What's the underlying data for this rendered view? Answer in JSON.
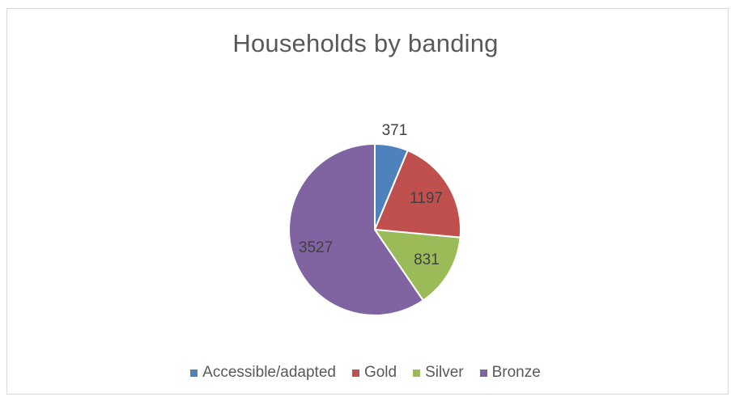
{
  "chart_data": {
    "type": "pie",
    "title": "Households by banding",
    "categories": [
      "Accessible/adapted",
      "Gold",
      "Silver",
      "Bronze"
    ],
    "values": [
      371,
      1197,
      831,
      3527
    ],
    "colors": [
      "#4f81bd",
      "#c0504d",
      "#9bbb59",
      "#8064a2"
    ],
    "legend_position": "bottom",
    "data_labels_shown": true,
    "start_angle": "top, clockwise"
  }
}
